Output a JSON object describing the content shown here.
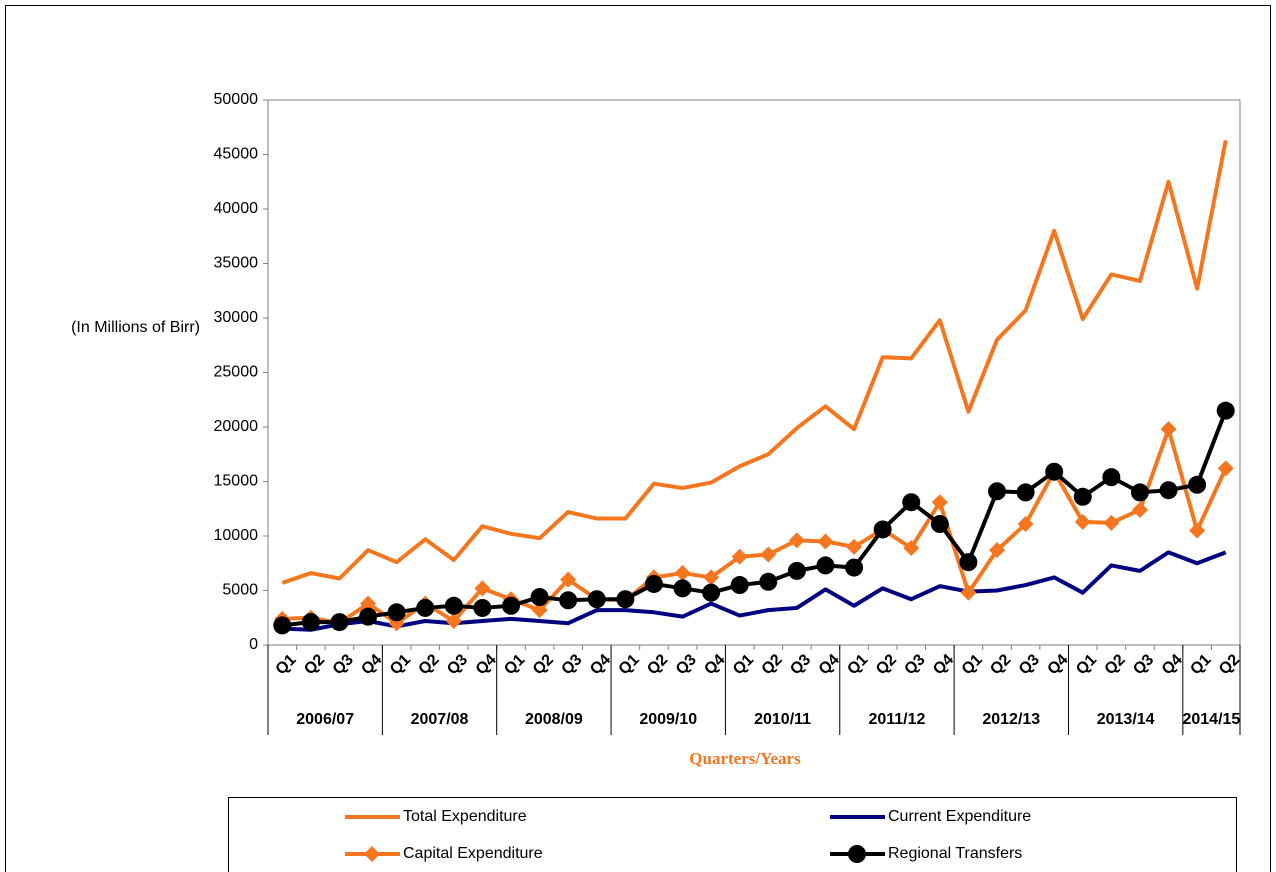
{
  "chart_data": {
    "type": "line",
    "ylabel": "(In Millions of Birr)",
    "xlabel": "Quarters/Years",
    "year_groups": [
      {
        "label": "2006/07",
        "quarters": [
          "Q1",
          "Q2",
          "Q3",
          "Q4"
        ]
      },
      {
        "label": "2007/08",
        "quarters": [
          "Q1",
          "Q2",
          "Q3",
          "Q4"
        ]
      },
      {
        "label": "2008/09",
        "quarters": [
          "Q1",
          "Q2",
          "Q3",
          "Q4"
        ]
      },
      {
        "label": "2009/10",
        "quarters": [
          "Q1",
          "Q2",
          "Q3",
          "Q4"
        ]
      },
      {
        "label": "2010/11",
        "quarters": [
          "Q1",
          "Q2",
          "Q3",
          "Q4"
        ]
      },
      {
        "label": "2011/12",
        "quarters": [
          "Q1",
          "Q2",
          "Q3",
          "Q4"
        ]
      },
      {
        "label": "2012/13",
        "quarters": [
          "Q1",
          "Q2",
          "Q3",
          "Q4"
        ]
      },
      {
        "label": "2013/14",
        "quarters": [
          "Q1",
          "Q2",
          "Q3",
          "Q4"
        ]
      },
      {
        "label": "2014/15",
        "quarters": [
          "Q1",
          "Q2"
        ]
      }
    ],
    "ylim": [
      0,
      50000
    ],
    "yticks": [
      0,
      5000,
      10000,
      15000,
      20000,
      25000,
      30000,
      35000,
      40000,
      45000,
      50000
    ],
    "legend": "bottom",
    "series": [
      {
        "name": "Total Expenditure",
        "color": "#f4761f",
        "marker": null,
        "values": [
          5700,
          6600,
          6100,
          8700,
          7600,
          9700,
          7800,
          10900,
          10200,
          9800,
          12200,
          11600,
          11600,
          14800,
          14400,
          14900,
          16400,
          17500,
          19900,
          21900,
          19800,
          26400,
          26300,
          29800,
          21400,
          28000,
          30700,
          38000,
          29900,
          34000,
          33400,
          42500,
          32700,
          46300
        ]
      },
      {
        "name": "Current Expenditure",
        "color": "#000080",
        "marker": null,
        "values": [
          1500,
          1400,
          1900,
          2200,
          1700,
          2200,
          2000,
          2200,
          2400,
          2200,
          2000,
          3200,
          3200,
          3000,
          2600,
          3800,
          2700,
          3200,
          3400,
          5100,
          3600,
          5200,
          4200,
          5400,
          4900,
          5000,
          5500,
          6200,
          4800,
          7300,
          6800,
          8500,
          7500,
          8500
        ]
      },
      {
        "name": "Capital Expenditure",
        "color": "#f4761f",
        "marker": "diamond",
        "values": [
          2400,
          2500,
          2000,
          3800,
          2000,
          3800,
          2200,
          5200,
          4200,
          3200,
          6000,
          4200,
          4100,
          6200,
          6600,
          6200,
          8100,
          8300,
          9600,
          9500,
          9000,
          10600,
          8900,
          13100,
          4800,
          8700,
          11100,
          15900,
          11300,
          11200,
          12400,
          19800,
          10500,
          16200
        ]
      },
      {
        "name": "Regional Transfers",
        "color": "#000000",
        "marker": "circle",
        "values": [
          1800,
          2100,
          2100,
          2600,
          3000,
          3400,
          3600,
          3400,
          3600,
          4400,
          4100,
          4200,
          4200,
          5600,
          5200,
          4800,
          5500,
          5800,
          6800,
          7300,
          7100,
          10600,
          13100,
          11100,
          7600,
          14100,
          14000,
          15900,
          13600,
          15400,
          14000,
          14200,
          14700,
          21500
        ]
      }
    ]
  }
}
